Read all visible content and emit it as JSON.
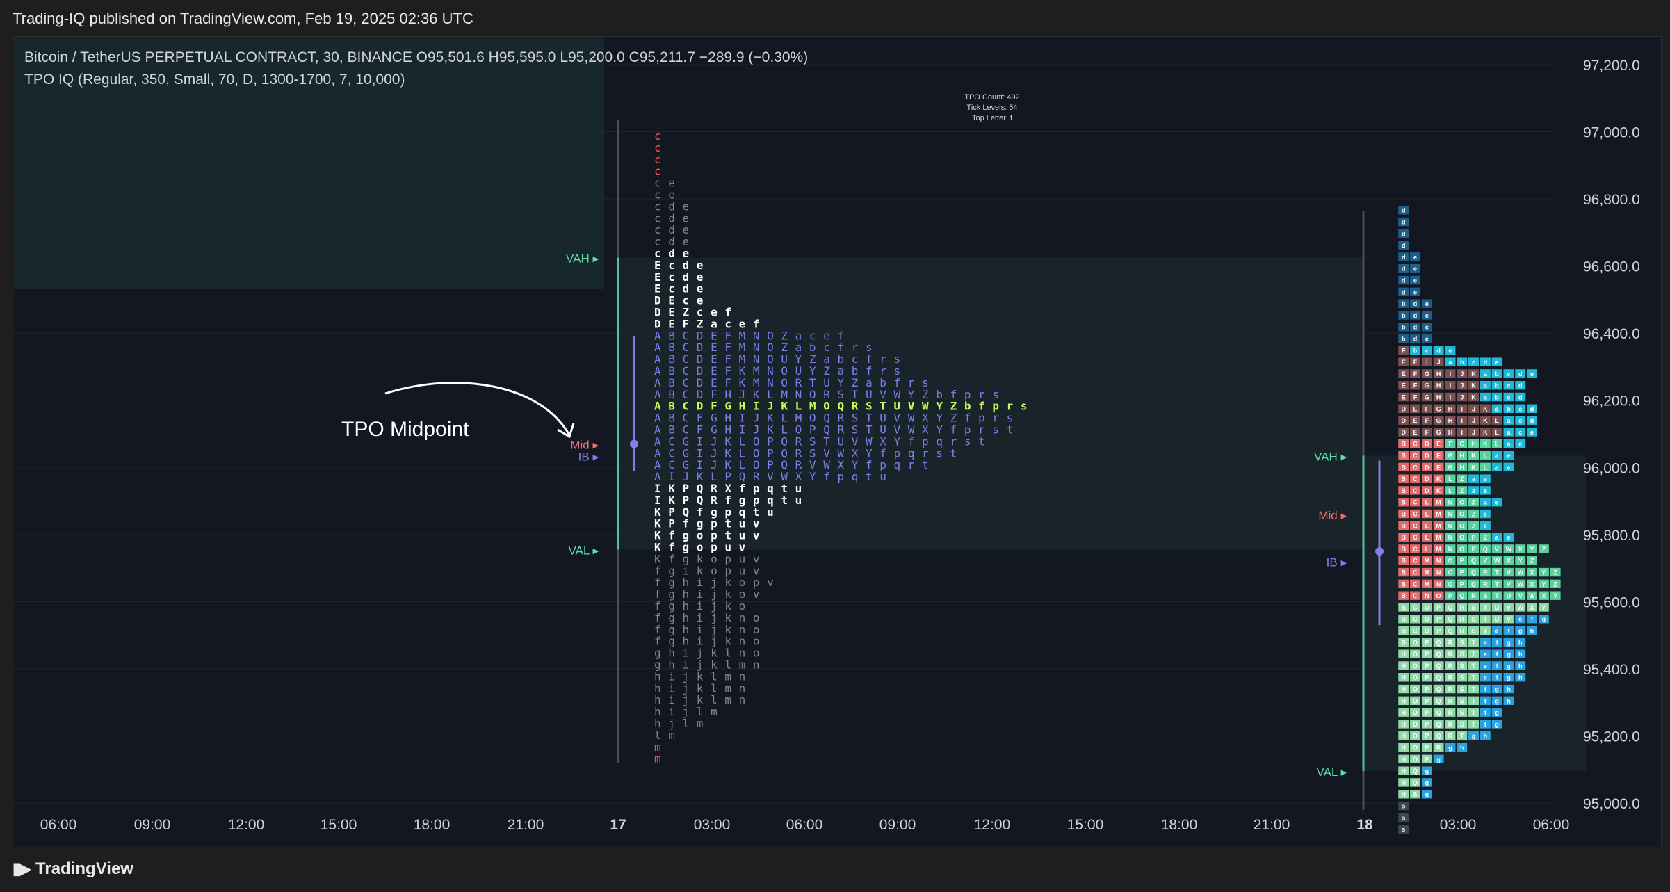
{
  "header": {
    "published": "Trading-IQ published on TradingView.com, Feb 19, 2025 02:36 UTC"
  },
  "footer": {
    "brand": "TradingView"
  },
  "legend": {
    "symbol_line": "Bitcoin / TetherUS PERPETUAL CONTRACT, 30, BINANCE  O95,501.6  H95,595.0  L95,200.0  C95,211.7  −289.9 (−0.30%)",
    "indicator_line": "TPO IQ (Regular, 350, Small, 70, D, 1300-1700, 7, 10,000)"
  },
  "annotation": {
    "text": "TPO Midpoint"
  },
  "stats": [
    "TPO Count: 492",
    "Tick Levels: 54",
    "Top Letter: f"
  ],
  "colors": {
    "background": "#131722",
    "value_area": "#19262a",
    "red": "#ef5350",
    "blue": "#7b7fe8",
    "green_poc": "#c6ff5a",
    "grey": "#808594",
    "white": "#ffffff",
    "vah_green": "#5be0a8",
    "mid_red": "#f07070",
    "ib_purple": "#8a7cf0"
  },
  "chart_data": {
    "type": "tpo_profile",
    "symbol": "Bitcoin / TetherUS PERPETUAL CONTRACT",
    "interval": "30",
    "exchange": "BINANCE",
    "ohlc": {
      "open": 95501.6,
      "high": 95595.0,
      "low": 95200.0,
      "close": 95211.7,
      "change": -289.9,
      "change_pct": -0.3
    },
    "y_axis": {
      "ticks": [
        "97,200.0",
        "97,000.0",
        "96,800.0",
        "96,600.0",
        "96,400.0",
        "96,200.0",
        "96,000.0",
        "95,800.0",
        "95,600.0",
        "95,400.0",
        "95,200.0",
        "95,000.0"
      ],
      "ylim": [
        94950,
        97300
      ],
      "position": "right"
    },
    "x_axis": {
      "ticks": [
        "06:00",
        "09:00",
        "12:00",
        "15:00",
        "18:00",
        "21:00",
        "17",
        "03:00",
        "06:00",
        "09:00",
        "12:00",
        "15:00",
        "18:00",
        "21:00",
        "18",
        "03:00",
        "06:00"
      ]
    },
    "profile_labels": {
      "vah": "VAH",
      "mid": "Mid",
      "ib": "IB",
      "val": "VAL"
    },
    "profile1": {
      "vah": 96625,
      "val": 95755,
      "mid": 96070,
      "ib_high": 96390,
      "ib_low": 95990,
      "rows": [
        {
          "t": "c",
          "c": "red"
        },
        {
          "t": "c",
          "c": "red"
        },
        {
          "t": "c",
          "c": "red"
        },
        {
          "t": "c",
          "c": "red"
        },
        {
          "t": "c e",
          "c": "grey"
        },
        {
          "t": "c e",
          "c": "grey"
        },
        {
          "t": "c d e",
          "c": "grey"
        },
        {
          "t": "c d e",
          "c": "grey"
        },
        {
          "t": "c d e",
          "c": "grey"
        },
        {
          "t": "c d e",
          "c": "grey"
        },
        {
          "t": "c d e",
          "c": "white"
        },
        {
          "t": "E c d e",
          "c": "white"
        },
        {
          "t": "E c d e",
          "c": "white"
        },
        {
          "t": "E c d e",
          "c": "white"
        },
        {
          "t": "D E c e",
          "c": "white"
        },
        {
          "t": "D E Z c e f",
          "c": "white"
        },
        {
          "t": "D E F Z a c e f",
          "c": "white"
        },
        {
          "t": "A B C D E F M N O Z a c e f",
          "c": "blue"
        },
        {
          "t": "A B C D E F M N O Z a b c f r s",
          "c": "blue"
        },
        {
          "t": "A B C D E F M N O U Y Z a b c f r s",
          "c": "blue"
        },
        {
          "t": "A B C D E F K M N O U Y Z a b f r s",
          "c": "blue"
        },
        {
          "t": "A B C D E F K M N O R T U Y Z a b f r s",
          "c": "blue"
        },
        {
          "t": "A B C D F H J K L M N O R S T U V W Y Z b f p r s",
          "c": "blue"
        },
        {
          "t": "A B C D F G H I J K L M O Q R S T U V W Y Z b f p r s",
          "c": "poc"
        },
        {
          "t": "A B C F G H I J K L M O Q R S T U V W X Y Z f p r s",
          "c": "blue"
        },
        {
          "t": "A B C F G H I J K L O P Q R S T U V W X Y f p r s t",
          "c": "blue"
        },
        {
          "t": "A C G I J K L O P Q R S T U V W X Y f p q r s t",
          "c": "blue"
        },
        {
          "t": "A C G I J K L O P Q R S V W X Y f p q r s t",
          "c": "blue"
        },
        {
          "t": "A C G I J K L O P Q R V W X Y f p q r t",
          "c": "blue"
        },
        {
          "t": "A I J K L P Q R V W X Y f p q t u",
          "c": "blue"
        },
        {
          "t": "I K P Q R X f p q t u",
          "c": "white"
        },
        {
          "t": "I K P Q R f g p q t u",
          "c": "white"
        },
        {
          "t": "K P Q f g p q t u",
          "c": "white"
        },
        {
          "t": "K P f g p t u v",
          "c": "white"
        },
        {
          "t": "K f g o p t u v",
          "c": "white"
        },
        {
          "t": "K f g o p u v",
          "c": "white"
        },
        {
          "t": "K f g k o p u v",
          "c": "grey"
        },
        {
          "t": "f g i k o p u v",
          "c": "grey"
        },
        {
          "t": "f g h i j k o p v",
          "c": "grey"
        },
        {
          "t": "f g h i j k o v",
          "c": "grey"
        },
        {
          "t": "f g h i j k o",
          "c": "grey"
        },
        {
          "t": "f g h i j k n o",
          "c": "grey"
        },
        {
          "t": "f g h i j k n o",
          "c": "grey"
        },
        {
          "t": "f g h i j k n o",
          "c": "grey"
        },
        {
          "t": "g h i j k l n o",
          "c": "grey"
        },
        {
          "t": "g h i j k l m n",
          "c": "grey"
        },
        {
          "t": "h i j k l m n",
          "c": "grey"
        },
        {
          "t": "h i j k l m n",
          "c": "grey"
        },
        {
          "t": "h i j k l m n",
          "c": "grey"
        },
        {
          "t": "h i j l m",
          "c": "grey"
        },
        {
          "t": "h j l m",
          "c": "grey"
        },
        {
          "t": "l m",
          "c": "grey"
        },
        {
          "t": "m",
          "c": "red"
        },
        {
          "t": "m",
          "c": "red"
        }
      ]
    },
    "profile2": {
      "vah": 96035,
      "val": 95095,
      "mid": 95860,
      "ib_high": 96020,
      "ib_low": 95530,
      "blocks": [
        "d",
        "d",
        "d",
        "d",
        "de",
        "de",
        "de",
        "de",
        "bde",
        "bde",
        "bde",
        "bde",
        "Fbcde",
        "EFIJabcde",
        "EFGHIJKabcde",
        "EFGHIJKabcd",
        "EFGHIJKabcd",
        "DEFGHIJKabcd",
        "DEFGHIJKLacd",
        "DEFGHIJKLace",
        "BCDEFGHKLae",
        "BCDEGHKLae",
        "BCDEGHKLae",
        "BCDKLZae",
        "BCDKLZae",
        "BCLMNOZae",
        "BCLMNOZe",
        "BCLMNOZe",
        "BCLMNOPZae",
        "BCLMNOPQVWXYZ",
        "BCMNOPQVWXYZ",
        "BCMNOPQRTVWXYZ",
        "BCMNOPQRTVWXYZ",
        "BCNOPQRSTUVWXY",
        "BCOPQRSTUVWXY",
        "BCOPQRSTUVefg",
        "BCOPQRSTefgh",
        "BOPQRSTefgh",
        "HOPQRSTefgh",
        "HOPQRSTefgh",
        "HOPQRSTefgh",
        "HOPQRSTfgh",
        "HOPQRSTfgh",
        "HOPQRSTfg",
        "HOPQRSTfg",
        "HOPQRTgh",
        "HOPRgh",
        "HOPg",
        "HQg",
        "HQg",
        "HSg",
        "s",
        "s",
        "s"
      ]
    }
  }
}
